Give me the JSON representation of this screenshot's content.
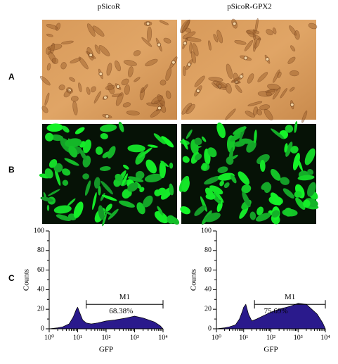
{
  "columns": [
    "pSicoR",
    "pSicoR-GPX2"
  ],
  "rows": [
    "A",
    "B",
    "C"
  ],
  "chart_data": [
    {
      "type": "area",
      "ylabel": "Counts",
      "xlabel": "GFP",
      "log_x": true,
      "xlim": [
        1,
        10000
      ],
      "ylim": [
        0,
        100
      ],
      "xticks": [
        {
          "value": 1,
          "label": "10⁰"
        },
        {
          "value": 10,
          "label": "10¹"
        },
        {
          "value": 100,
          "label": "10²"
        },
        {
          "value": 1000,
          "label": "10³"
        },
        {
          "value": 10000,
          "label": "10⁴"
        }
      ],
      "yticks": [
        0,
        20,
        40,
        60,
        80,
        100
      ],
      "color": "#2a1a8c",
      "x": [
        1,
        2,
        3,
        5,
        7,
        9,
        10,
        12,
        15,
        20,
        30,
        50,
        100,
        200,
        500,
        1000,
        2000,
        5000,
        8000,
        10000
      ],
      "values": [
        0,
        1,
        2,
        5,
        12,
        20,
        22,
        16,
        9,
        6,
        5,
        6,
        8,
        9,
        11,
        13,
        11,
        7,
        3,
        0
      ],
      "gate": {
        "name": "M1",
        "label": "68.38%",
        "x": [
          20,
          10000
        ],
        "y": 25
      }
    },
    {
      "type": "area",
      "ylabel": "Counts",
      "xlabel": "GFP",
      "log_x": true,
      "xlim": [
        1,
        10000
      ],
      "ylim": [
        0,
        100
      ],
      "xticks": [
        {
          "value": 1,
          "label": "10⁰"
        },
        {
          "value": 10,
          "label": "10¹"
        },
        {
          "value": 100,
          "label": "10²"
        },
        {
          "value": 1000,
          "label": "10³"
        },
        {
          "value": 10000,
          "label": "10⁴"
        }
      ],
      "yticks": [
        0,
        20,
        40,
        60,
        80,
        100
      ],
      "color": "#2a1a8c",
      "x": [
        1,
        2,
        3,
        5,
        7,
        9,
        10,
        12,
        15,
        20,
        30,
        50,
        100,
        200,
        500,
        1000,
        2000,
        5000,
        8000,
        10000
      ],
      "values": [
        0,
        1,
        2,
        4,
        10,
        18,
        22,
        25,
        15,
        8,
        10,
        13,
        17,
        20,
        23,
        26,
        25,
        15,
        6,
        0
      ],
      "gate": {
        "name": "M1",
        "label": "75.69%",
        "x": [
          25,
          10000
        ],
        "y": 25
      }
    }
  ]
}
